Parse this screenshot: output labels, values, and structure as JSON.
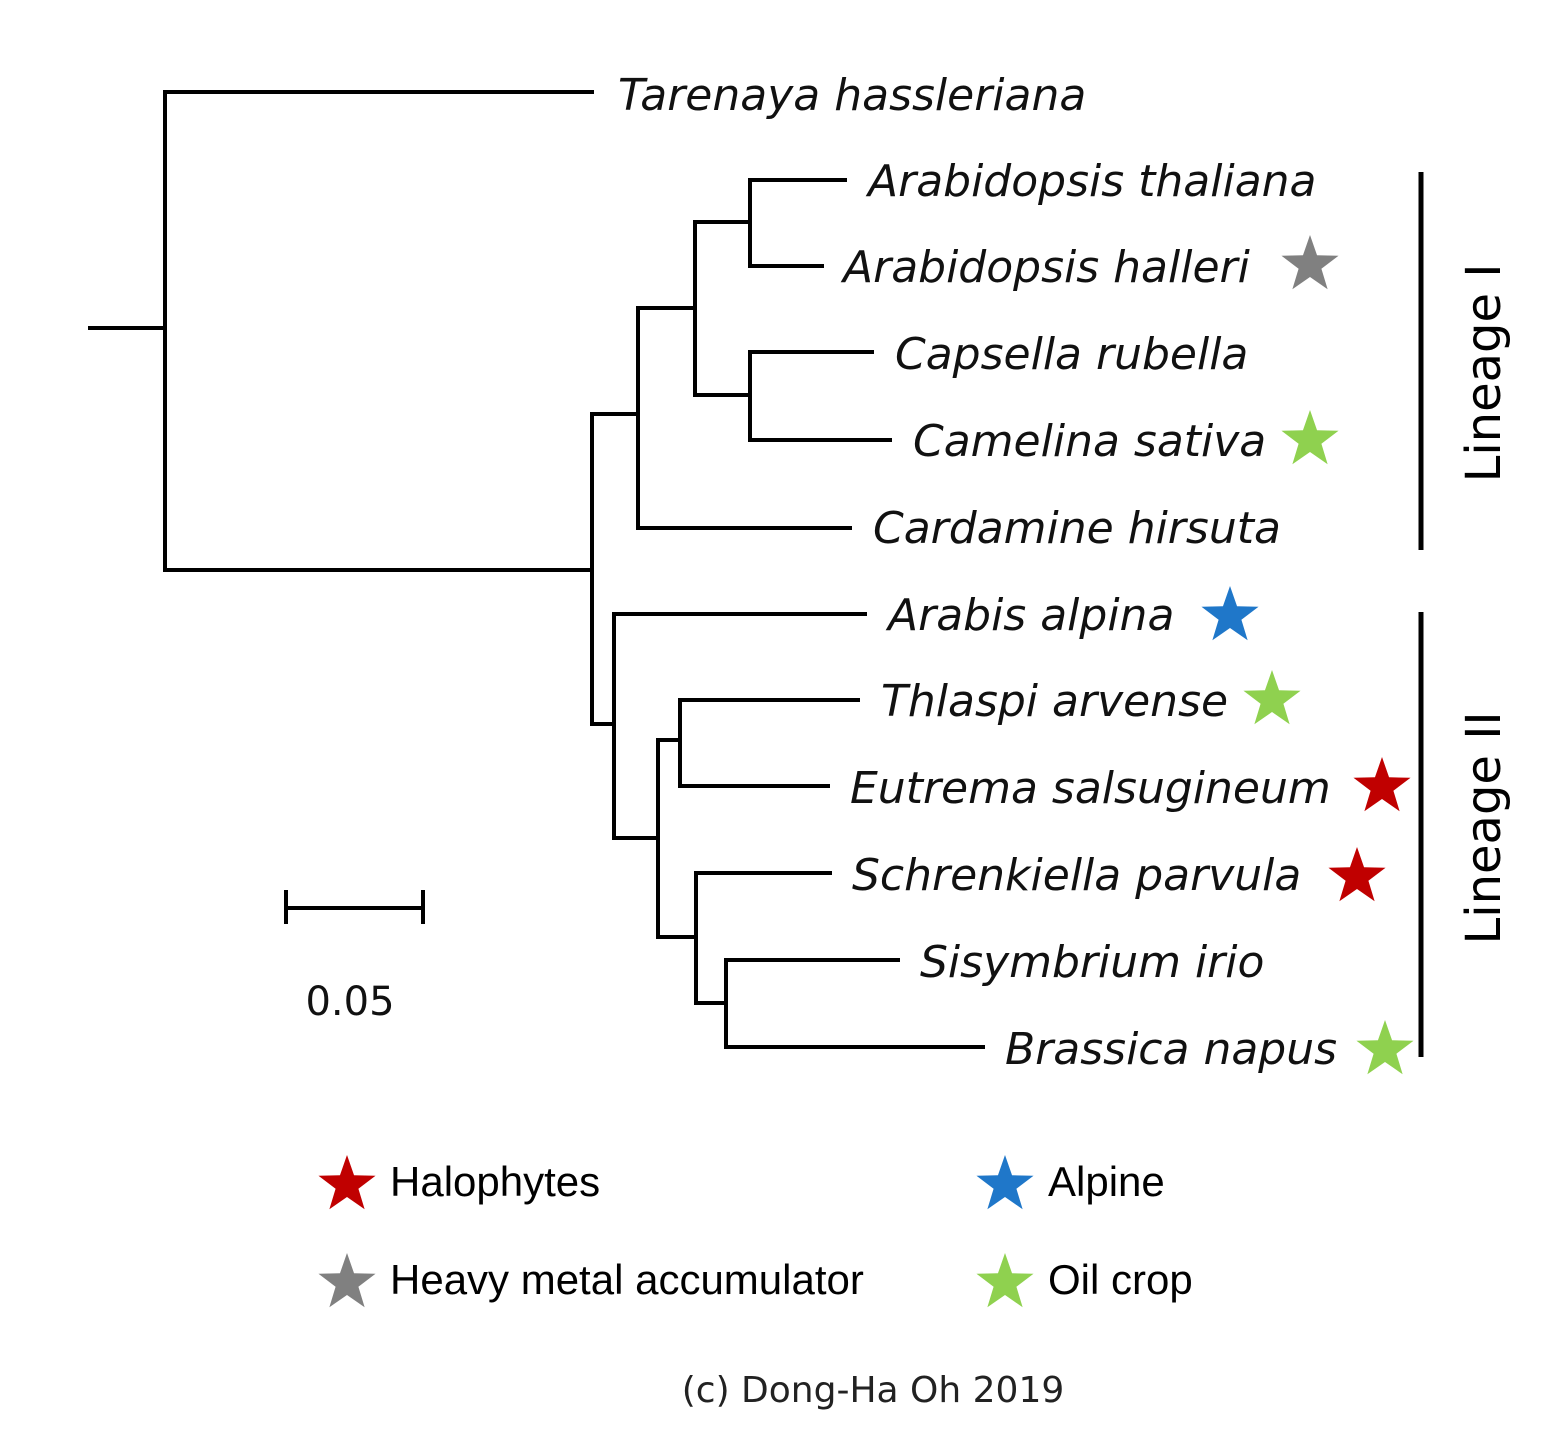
{
  "colors": {
    "halophyte": "#c00000",
    "alpine": "#1f77c9",
    "heavy_metal": "#808080",
    "oil_crop": "#8fd14f"
  },
  "taxa": [
    {
      "name": "Tarenaya hassleriana",
      "marker": null
    },
    {
      "name": "Arabidopsis thaliana",
      "marker": null
    },
    {
      "name": "Arabidopsis halleri",
      "marker": "heavy_metal"
    },
    {
      "name": "Capsella rubella",
      "marker": null
    },
    {
      "name": "Camelina sativa",
      "marker": "oil_crop"
    },
    {
      "name": "Cardamine hirsuta",
      "marker": null
    },
    {
      "name": "Arabis alpina",
      "marker": "alpine"
    },
    {
      "name": "Thlaspi arvense",
      "marker": "oil_crop"
    },
    {
      "name": "Eutrema salsugineum",
      "marker": "halophyte"
    },
    {
      "name": "Schrenkiella parvula",
      "marker": "halophyte"
    },
    {
      "name": "Sisymbrium irio",
      "marker": null
    },
    {
      "name": "Brassica napus",
      "marker": "oil_crop"
    }
  ],
  "lineages": [
    {
      "label": "Lineage I"
    },
    {
      "label": "Lineage II"
    }
  ],
  "scale_bar": {
    "label": "0.05"
  },
  "legend": [
    {
      "label": "Halophytes",
      "marker": "halophyte"
    },
    {
      "label": "Alpine",
      "marker": "alpine"
    },
    {
      "label": "Heavy metal accumulator",
      "marker": "heavy_metal"
    },
    {
      "label": "Oil crop",
      "marker": "oil_crop"
    }
  ],
  "credit": "(c) Dong-Ha Oh 2019"
}
